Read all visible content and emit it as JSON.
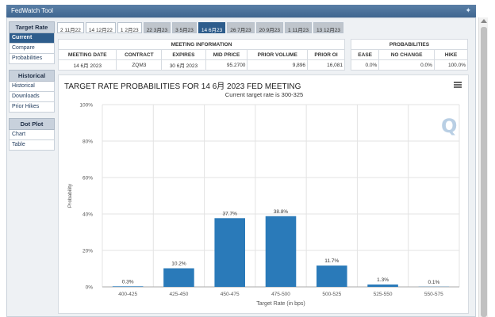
{
  "app": {
    "title": "FedWatch Tool",
    "twitter_icon": "twitter-icon"
  },
  "sidebar": {
    "sections": [
      {
        "header": "Target Rate",
        "items": [
          {
            "label": "Current",
            "active": true
          },
          {
            "label": "Compare"
          },
          {
            "label": "Probabilities"
          }
        ]
      },
      {
        "header": "Historical",
        "items": [
          {
            "label": "Historical"
          },
          {
            "label": "Downloads"
          },
          {
            "label": "Prior Hikes"
          }
        ]
      },
      {
        "header": "Dot Plot",
        "items": [
          {
            "label": "Chart"
          },
          {
            "label": "Table"
          }
        ]
      }
    ]
  },
  "tabs": [
    {
      "label": "2 11月22"
    },
    {
      "label": "14 12月22"
    },
    {
      "label": "1 2月23"
    },
    {
      "label": "22 3月23",
      "style": "grey"
    },
    {
      "label": "3 5月23",
      "style": "grey"
    },
    {
      "label": "14 6月23",
      "style": "active"
    },
    {
      "label": "26 7月23",
      "style": "grey"
    },
    {
      "label": "20 9月23",
      "style": "grey"
    },
    {
      "label": "1 11月23",
      "style": "grey"
    },
    {
      "label": "13 12月23",
      "style": "grey"
    }
  ],
  "meeting_info": {
    "header": "MEETING INFORMATION",
    "columns": [
      "MEETING DATE",
      "CONTRACT",
      "EXPIRES",
      "MID PRICE",
      "PRIOR VOLUME",
      "PRIOR OI"
    ],
    "row": [
      "14 6月 2023",
      "ZQM3",
      "30 6月 2023",
      "95.2700",
      "9,896",
      "16,081"
    ]
  },
  "probabilities": {
    "header": "PROBABILITIES",
    "columns": [
      "EASE",
      "NO CHANGE",
      "HIKE"
    ],
    "row": [
      "0.0%",
      "0.0%",
      "100.0%"
    ]
  },
  "chart_panel": {
    "menu_icon": "hamburger-menu-icon",
    "logo": "Q"
  },
  "chart_data": {
    "type": "bar",
    "title": "TARGET RATE PROBABILITIES FOR 14 6月 2023 FED MEETING",
    "subtitle": "Current target rate is 300-325",
    "xlabel": "Target Rate (in bps)",
    "ylabel": "Probability",
    "categories": [
      "400-425",
      "425-450",
      "450-475",
      "475-500",
      "500-525",
      "525-550",
      "550-575"
    ],
    "values": [
      0.3,
      10.2,
      37.7,
      38.8,
      11.7,
      1.3,
      0.1
    ],
    "data_labels": [
      "0.3%",
      "10.2%",
      "37.7%",
      "38.8%",
      "11.7%",
      "1.3%",
      "0.1%"
    ],
    "yticks": [
      "0%",
      "20%",
      "40%",
      "60%",
      "80%",
      "100%"
    ],
    "ylim": [
      0,
      100
    ],
    "grid": true,
    "bar_color": "#2a7ab9"
  }
}
